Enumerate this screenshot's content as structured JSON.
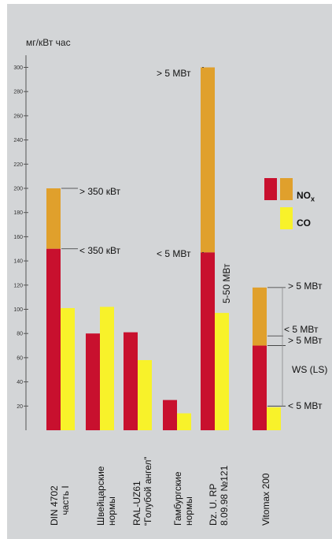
{
  "chart_data": {
    "type": "bar",
    "ylabel": "мг/кВт час",
    "ylim": [
      0,
      310
    ],
    "yticks": [
      20,
      40,
      60,
      80,
      100,
      120,
      140,
      160,
      180,
      200,
      220,
      240,
      260,
      280,
      300
    ],
    "grid": false,
    "legend_placement": "right",
    "legend": [
      {
        "name_main": "NO",
        "name_sub": "x",
        "colors": [
          "#c8102e",
          "#e0a02c"
        ]
      },
      {
        "name_main": "CO",
        "colors": [
          "#f8f22a"
        ]
      }
    ],
    "colors": {
      "nox_low": "#c8102e",
      "nox_high": "#e0a02c",
      "co": "#f8f22a"
    },
    "groups": [
      {
        "label_lines": [
          "DIN 4702",
          "часть I"
        ],
        "nox_low": 150,
        "nox_high": 200,
        "co": 101
      },
      {
        "label_lines": [
          "Швейцарские",
          "нормы"
        ],
        "nox_low": 80,
        "nox_high": null,
        "co": 102
      },
      {
        "label_lines": [
          "RAL-UZ61",
          "“Голубой ангел”"
        ],
        "nox_low": 81,
        "nox_high": null,
        "co": 58
      },
      {
        "label_lines": [
          "Гамбургские",
          "нормы"
        ],
        "nox_low": 25,
        "nox_high": null,
        "co": 14
      },
      {
        "label_lines": [
          "Dz. U. RP",
          "8.09.98 №121"
        ],
        "nox_low": 147,
        "nox_high": 300,
        "co": 97
      },
      {
        "label_lines": [
          "Vitomax 200"
        ],
        "nox_low": 70,
        "nox_high": 118,
        "co": 19
      }
    ],
    "annotations": [
      {
        "text": "> 350 кВт",
        "y": 200
      },
      {
        "text": "< 350 кВт",
        "y": 150
      },
      {
        "text": "> 5 МВт",
        "y": 300
      },
      {
        "text": "< 5 МВт",
        "y": 147
      },
      {
        "text": "5-50 МВт",
        "y": 97
      },
      {
        "text": "> 5 МВт",
        "y": 118
      },
      {
        "text": "< 5 МВт",
        "y": 78
      },
      {
        "text": "> 5 МВт",
        "y": 70
      },
      {
        "text": "WS (LS)",
        "y": 50
      },
      {
        "text": "< 5 МВт",
        "y": 20
      }
    ]
  }
}
